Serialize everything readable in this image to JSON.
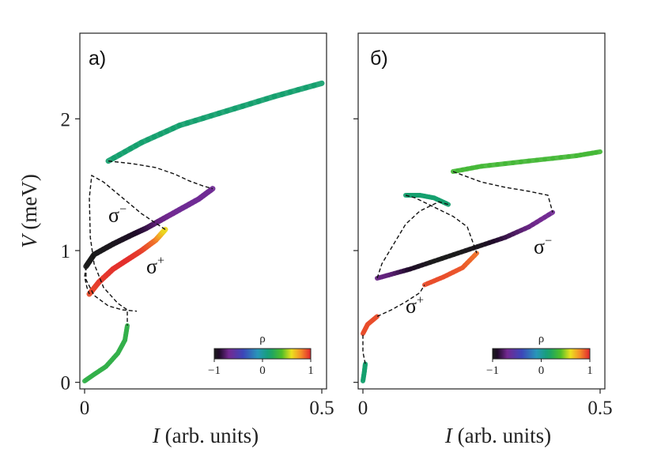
{
  "chart_data": [
    {
      "type": "line",
      "panel_label": "a)",
      "xlabel_italic": "I",
      "xlabel_rest": " (arb. units)",
      "ylabel_italic": "V",
      "ylabel_rest": " (meV)",
      "xlim": [
        -0.01,
        0.51
      ],
      "ylim": [
        -0.05,
        2.65
      ],
      "xticks": [
        0,
        0.5
      ],
      "xtick_labels": [
        "0",
        "0.5"
      ],
      "yticks": [
        0,
        1,
        2
      ],
      "ytick_labels": [
        "0",
        "1",
        "2"
      ],
      "colorbar": {
        "label": "ρ",
        "range": [
          -1,
          1
        ],
        "ticks": [
          -1,
          0,
          1
        ],
        "tick_labels": [
          "−1",
          "0",
          "1"
        ],
        "placement": "lower-right"
      },
      "annotations": [
        {
          "sym": "σ",
          "sup": "−",
          "x": 0.05,
          "y": 1.22
        },
        {
          "sym": "σ",
          "sup": "+",
          "x": 0.13,
          "y": 0.83
        }
      ],
      "series": [
        {
          "style": "colored",
          "width": 6,
          "points": [
            [
              0.0,
              0.01,
              0.28
            ],
            [
              0.02,
              0.06,
              0.28
            ],
            [
              0.045,
              0.12,
              0.28
            ],
            [
              0.07,
              0.22,
              0.28
            ],
            [
              0.085,
              0.32,
              0.28
            ],
            [
              0.09,
              0.43,
              0.28
            ]
          ]
        },
        {
          "style": "colored",
          "width": 7,
          "points": [
            [
              0.05,
              1.68,
              0.15
            ],
            [
              0.12,
              1.82,
              0.15
            ],
            [
              0.2,
              1.95,
              0.15
            ],
            [
              0.3,
              2.06,
              0.15
            ],
            [
              0.4,
              2.17,
              0.15
            ],
            [
              0.5,
              2.27,
              0.15
            ]
          ]
        },
        {
          "style": "colored",
          "width": 7,
          "points": [
            [
              0.003,
              0.88,
              -1
            ],
            [
              0.02,
              0.97,
              -1
            ],
            [
              0.06,
              1.05,
              -0.98
            ],
            [
              0.1,
              1.12,
              -0.93
            ],
            [
              0.13,
              1.17,
              -0.85
            ],
            [
              0.16,
              1.23,
              -0.73
            ],
            [
              0.2,
              1.31,
              -0.68
            ],
            [
              0.24,
              1.39,
              -0.68
            ],
            [
              0.27,
              1.47,
              -0.68
            ]
          ]
        },
        {
          "style": "colored",
          "width": 7,
          "points": [
            [
              0.01,
              0.67,
              0.92
            ],
            [
              0.03,
              0.76,
              0.95
            ],
            [
              0.06,
              0.86,
              0.97
            ],
            [
              0.09,
              0.93,
              0.98
            ],
            [
              0.12,
              1.0,
              0.95
            ],
            [
              0.15,
              1.08,
              0.85
            ],
            [
              0.17,
              1.16,
              0.6
            ]
          ]
        },
        {
          "style": "dashed",
          "points": [
            [
              0.05,
              1.68
            ],
            [
              0.1,
              1.66
            ],
            [
              0.15,
              1.63
            ],
            [
              0.19,
              1.58
            ],
            [
              0.22,
              1.53
            ],
            [
              0.25,
              1.49
            ],
            [
              0.27,
              1.47
            ]
          ]
        },
        {
          "style": "dashed",
          "points": [
            [
              0.17,
              1.16
            ],
            [
              0.12,
              1.28
            ],
            [
              0.08,
              1.4
            ],
            [
              0.04,
              1.52
            ],
            [
              0.015,
              1.57
            ],
            [
              0.01,
              1.4
            ],
            [
              0.012,
              1.1
            ],
            [
              0.02,
              0.9
            ],
            [
              0.04,
              0.72
            ],
            [
              0.07,
              0.6
            ],
            [
              0.09,
              0.55
            ],
            [
              0.09,
              0.43
            ]
          ]
        },
        {
          "style": "dashed",
          "points": [
            [
              0.003,
              0.88
            ],
            [
              0.003,
              0.78
            ],
            [
              0.02,
              0.66
            ],
            [
              0.05,
              0.58
            ],
            [
              0.08,
              0.55
            ],
            [
              0.11,
              0.54
            ]
          ]
        },
        {
          "style": "dashed",
          "points": [
            [
              0.003,
              0.88
            ],
            [
              0.0,
              0.8
            ],
            [
              0.005,
              0.72
            ],
            [
              0.01,
              0.67
            ]
          ]
        }
      ]
    },
    {
      "type": "line",
      "panel_label": "б)",
      "xlabel_italic": "I",
      "xlabel_rest": "  (arb. units)",
      "xlim": [
        -0.01,
        0.51
      ],
      "ylim": [
        -0.05,
        2.65
      ],
      "xticks": [
        0,
        0.5
      ],
      "xtick_labels": [
        "0",
        "0.5"
      ],
      "yticks": [
        0,
        1,
        2
      ],
      "ytick_labels": [
        "",
        "",
        ""
      ],
      "colorbar": {
        "label": "ρ",
        "range": [
          -1,
          1
        ],
        "ticks": [
          -1,
          0,
          1
        ],
        "tick_labels": [
          "−1",
          "0",
          "1"
        ],
        "placement": "lower-right"
      },
      "annotations": [
        {
          "sym": "σ",
          "sup": "−",
          "x": 0.36,
          "y": 0.98
        },
        {
          "sym": "σ",
          "sup": "+",
          "x": 0.09,
          "y": 0.53
        }
      ],
      "series": [
        {
          "style": "colored",
          "width": 6,
          "points": [
            [
              0.0,
              0.01,
              0.15
            ],
            [
              0.003,
              0.08,
              0.15
            ],
            [
              0.005,
              0.14,
              0.15
            ]
          ]
        },
        {
          "style": "colored",
          "width": 6,
          "points": [
            [
              0.0,
              0.37,
              0.92
            ],
            [
              0.01,
              0.44,
              0.92
            ],
            [
              0.03,
              0.5,
              0.92
            ]
          ]
        },
        {
          "style": "colored",
          "width": 6,
          "points": [
            [
              0.03,
              0.79,
              -0.72
            ],
            [
              0.06,
              0.82,
              -0.75
            ],
            [
              0.1,
              0.86,
              -0.9
            ],
            [
              0.15,
              0.92,
              -1
            ],
            [
              0.2,
              0.98,
              -1
            ],
            [
              0.25,
              1.04,
              -0.97
            ],
            [
              0.3,
              1.1,
              -0.85
            ],
            [
              0.35,
              1.18,
              -0.73
            ],
            [
              0.4,
              1.29,
              -0.68
            ]
          ]
        },
        {
          "style": "colored",
          "width": 6,
          "points": [
            [
              0.13,
              0.74,
              0.92
            ],
            [
              0.17,
              0.8,
              0.92
            ],
            [
              0.21,
              0.87,
              0.9
            ],
            [
              0.24,
              0.98,
              0.85
            ]
          ]
        },
        {
          "style": "colored",
          "width": 6,
          "points": [
            [
              0.09,
              1.42,
              0.15
            ],
            [
              0.12,
              1.42,
              0.15
            ],
            [
              0.15,
              1.4,
              0.15
            ],
            [
              0.18,
              1.35,
              0.15
            ]
          ]
        },
        {
          "style": "colored",
          "width": 6,
          "points": [
            [
              0.19,
              1.6,
              0.35
            ],
            [
              0.25,
              1.64,
              0.35
            ],
            [
              0.35,
              1.68,
              0.35
            ],
            [
              0.45,
              1.72,
              0.35
            ],
            [
              0.5,
              1.75,
              0.35
            ]
          ]
        },
        {
          "style": "dashed",
          "points": [
            [
              0.19,
              1.6
            ],
            [
              0.22,
              1.56
            ],
            [
              0.25,
              1.52
            ],
            [
              0.3,
              1.48
            ],
            [
              0.35,
              1.45
            ],
            [
              0.39,
              1.42
            ],
            [
              0.4,
              1.29
            ]
          ]
        },
        {
          "style": "dashed",
          "points": [
            [
              0.09,
              1.42
            ],
            [
              0.11,
              1.4
            ],
            [
              0.15,
              1.33
            ],
            [
              0.19,
              1.26
            ],
            [
              0.22,
              1.18
            ],
            [
              0.24,
              0.98
            ]
          ]
        },
        {
          "style": "dashed",
          "points": [
            [
              0.03,
              0.79
            ],
            [
              0.04,
              0.9
            ],
            [
              0.07,
              1.08
            ],
            [
              0.09,
              1.2
            ],
            [
              0.12,
              1.3
            ],
            [
              0.16,
              1.37
            ],
            [
              0.18,
              1.35
            ]
          ]
        },
        {
          "style": "dashed",
          "points": [
            [
              0.03,
              0.5
            ],
            [
              0.06,
              0.55
            ],
            [
              0.09,
              0.61
            ],
            [
              0.12,
              0.68
            ],
            [
              0.13,
              0.74
            ]
          ]
        },
        {
          "style": "dashed",
          "points": [
            [
              0.005,
              0.14
            ],
            [
              0.0,
              0.23
            ],
            [
              0.0,
              0.3
            ],
            [
              0.0,
              0.37
            ]
          ]
        }
      ]
    }
  ]
}
